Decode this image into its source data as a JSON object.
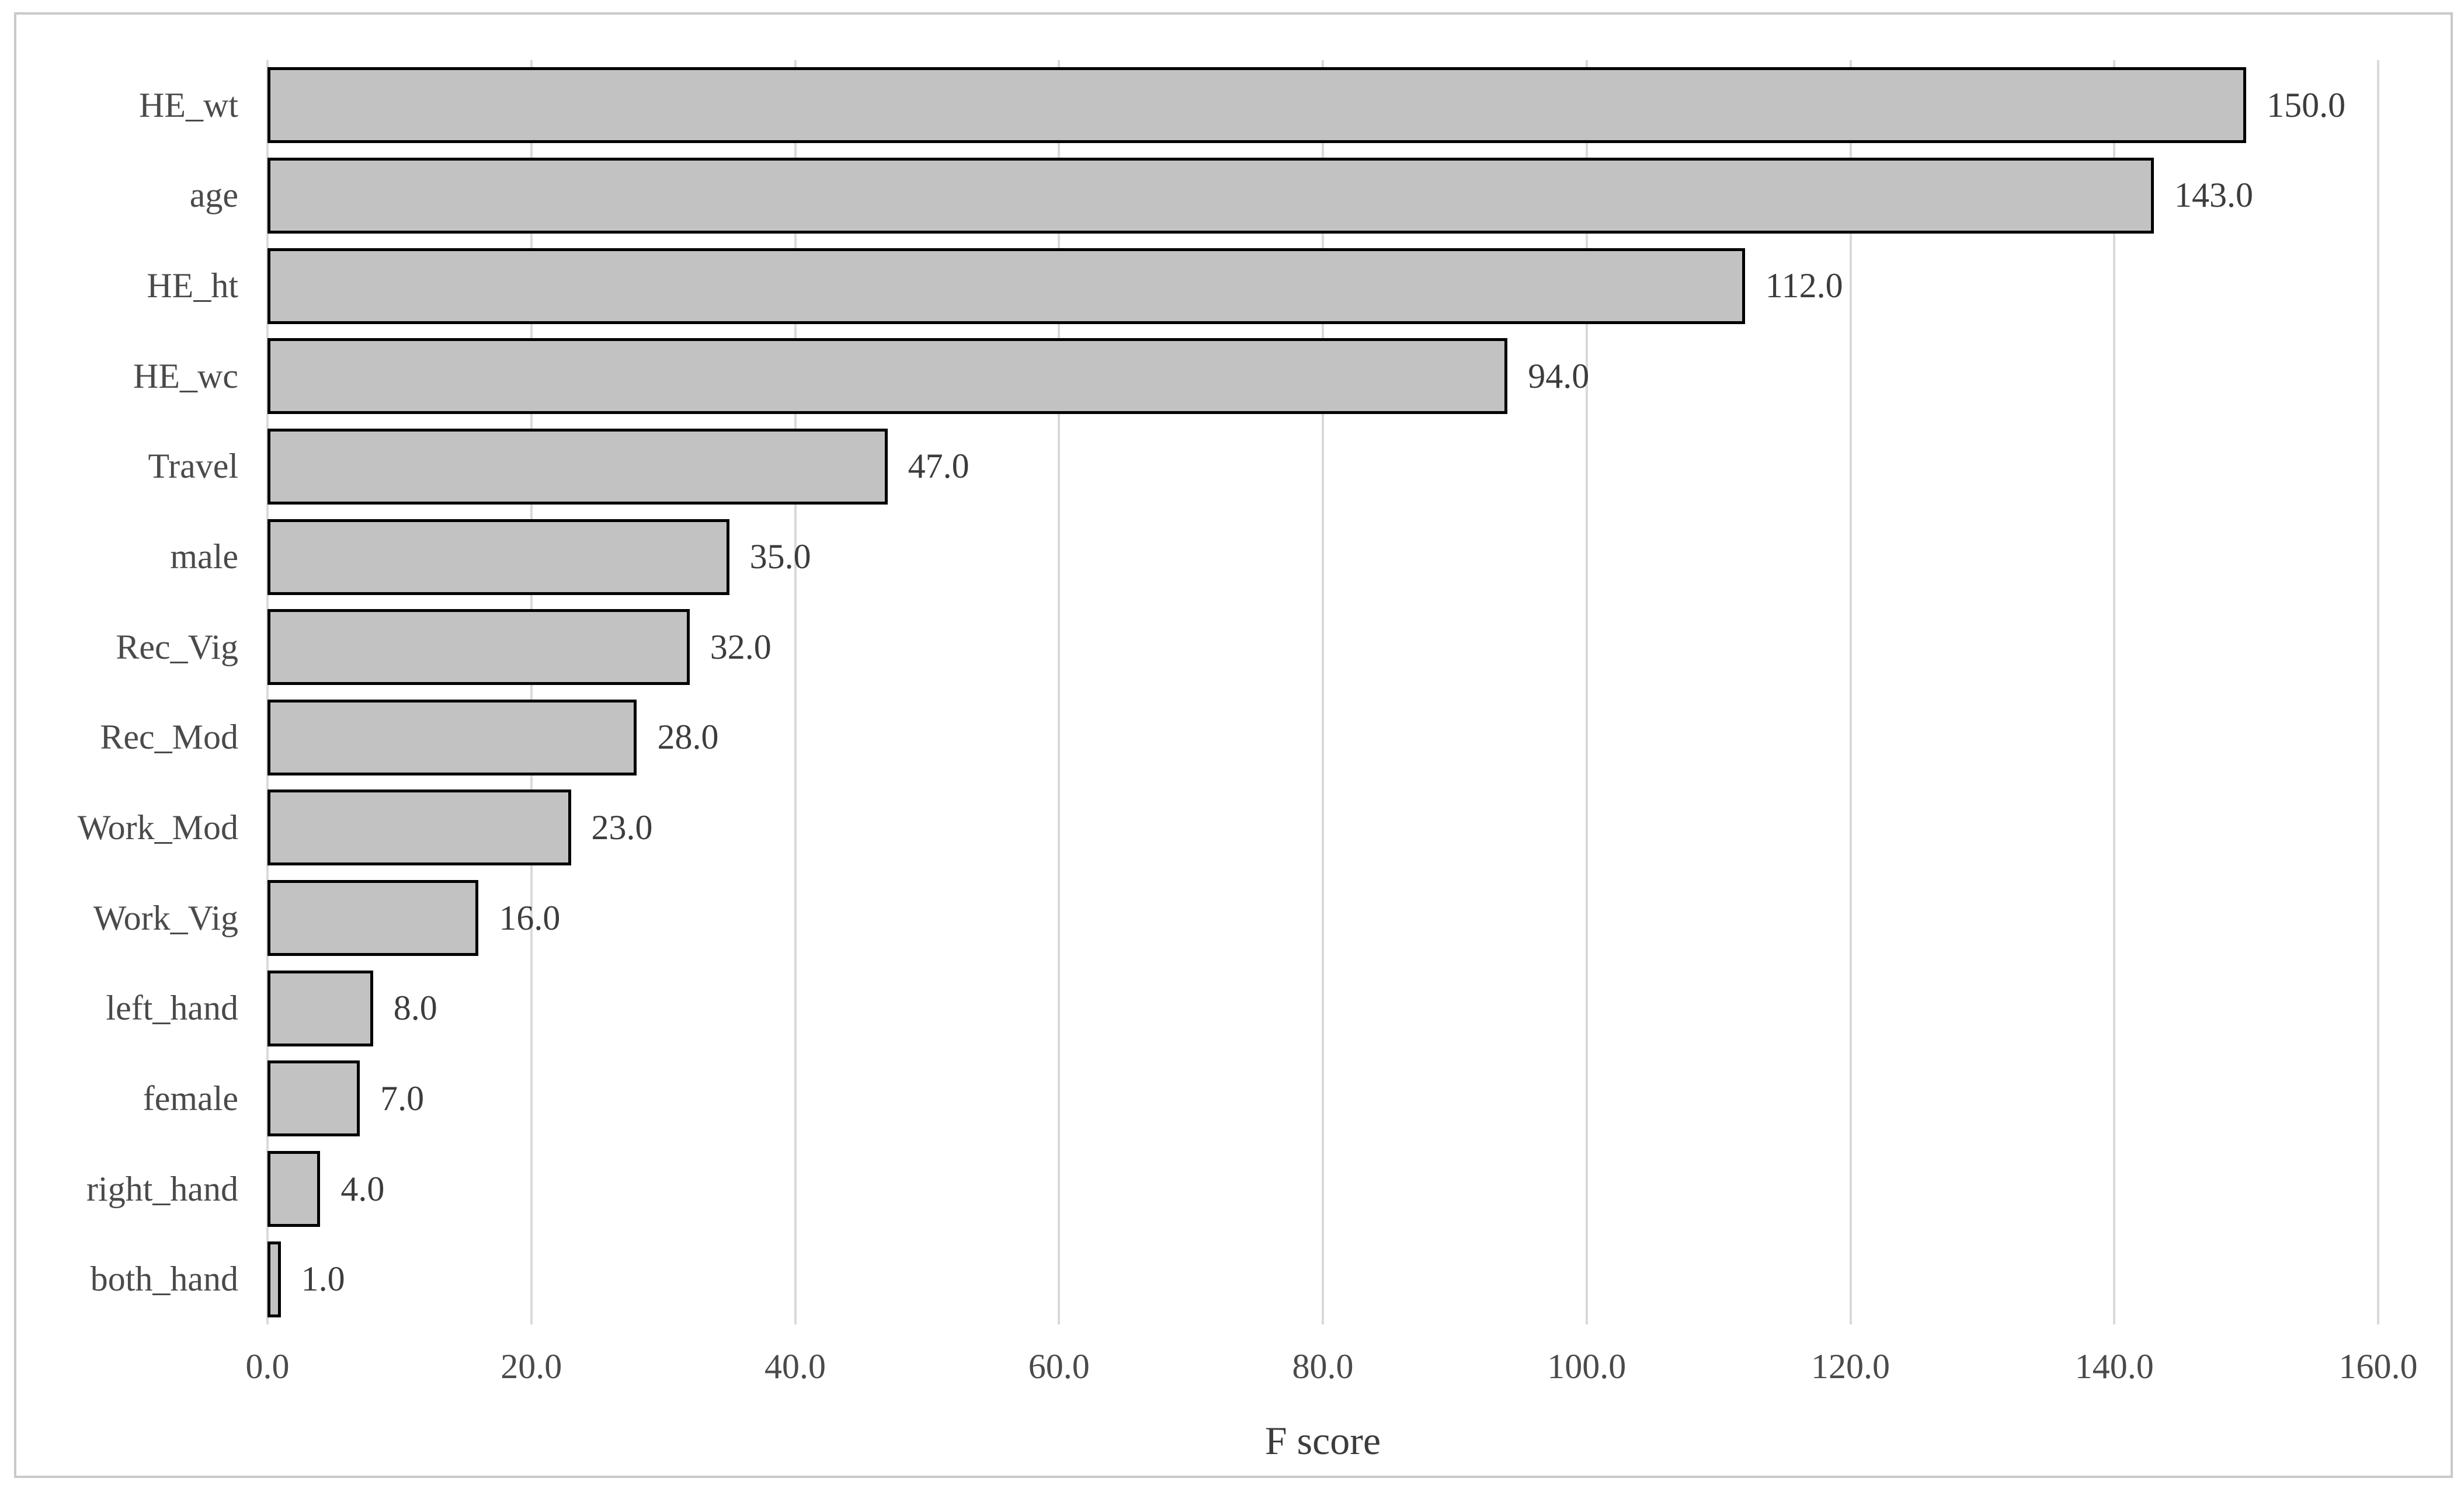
{
  "chart_data": {
    "type": "bar",
    "orientation": "horizontal",
    "title": "",
    "categories": [
      "HE_wt",
      "age",
      "HE_ht",
      "HE_wc",
      "Travel",
      "male",
      "Rec_Vig",
      "Rec_Mod",
      "Work_Mod",
      "Work_Vig",
      "left_hand",
      "female",
      "right_hand",
      "both_hand"
    ],
    "values": [
      150.0,
      143.0,
      112.0,
      94.0,
      47.0,
      35.0,
      32.0,
      28.0,
      23.0,
      16.0,
      8.0,
      7.0,
      4.0,
      1.0
    ],
    "value_labels": [
      "150.0",
      "143.0",
      "112.0",
      "94.0",
      "47.0",
      "35.0",
      "32.0",
      "28.0",
      "23.0",
      "16.0",
      "8.0",
      "7.0",
      "4.0",
      "1.0"
    ],
    "xlabel": "F score",
    "ylabel": "",
    "xlim": [
      0,
      160
    ],
    "xticks": [
      0,
      20,
      40,
      60,
      80,
      100,
      120,
      140,
      160
    ],
    "xtick_labels": [
      "0.0",
      "20.0",
      "40.0",
      "60.0",
      "80.0",
      "100.0",
      "120.0",
      "140.0",
      "160.0"
    ],
    "grid": true,
    "legend": false,
    "colors": {
      "bar_fill": "#c2c2c2",
      "bar_border": "#000000",
      "gridline": "#d9d9d9",
      "category_text": "#4a4a4a",
      "value_text": "#3c3c3c",
      "figure_border": "#c9c9c9",
      "background": "#ffffff"
    }
  }
}
